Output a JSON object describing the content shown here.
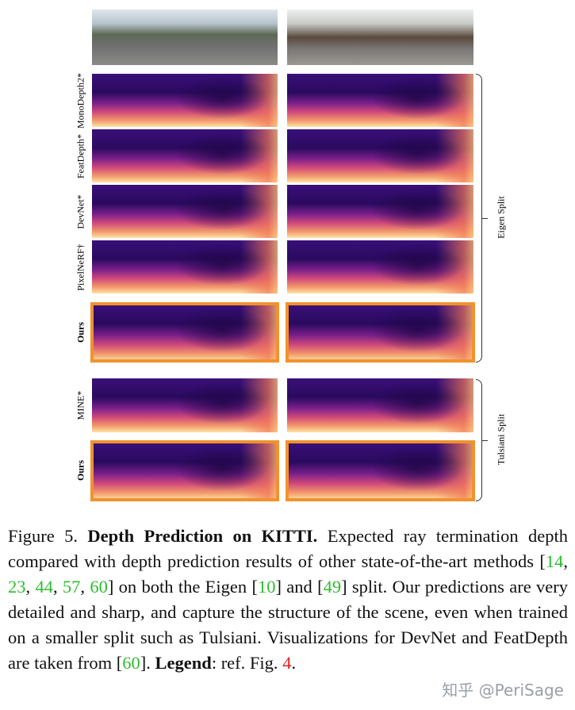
{
  "row_labels": [
    "MonoDepth2*",
    "FeatDepth*",
    "DevNet*",
    "PixelNeRF†",
    "Ours",
    "MINE*",
    "Ours"
  ],
  "splits": [
    "Eigen Split",
    "Tulsiani Split"
  ],
  "caption": {
    "fig": "Figure 5.",
    "title": "Depth Prediction on KITTI.",
    "t1": " Expected ray termination depth compared with depth prediction results of other state-of-the-art methods [",
    "c14": "14",
    "c23": "23",
    "c44": "44",
    "c57": "57",
    "c60": "60",
    "t2": "] on both the Eigen [",
    "c10": "10",
    "t3": "] and [",
    "c49": "49",
    "t4": "] split. Our predictions are very detailed and sharp, and capture the structure of the scene, even when trained on a smaller split such as Tulsiani. Visualizations for DevNet and FeatDepth are taken from [",
    "c60b": "60",
    "t5": "]. ",
    "legend": "Legend",
    "t6": ": ref. Fig. ",
    "fig4": "4",
    "t7": "."
  },
  "watermark": "知乎 @PeriSage",
  "colors": {
    "highlight_border": "#f0922e",
    "citation": "#2ebd2e",
    "figref": "#e02020"
  }
}
